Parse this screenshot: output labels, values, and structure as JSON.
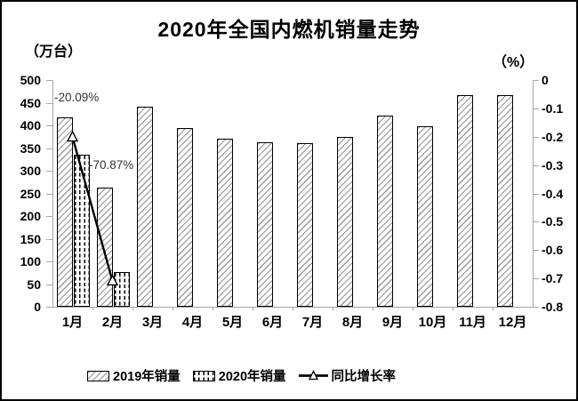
{
  "chart_data": {
    "type": "bar",
    "subtype": "clustered-bar-with-line-combo",
    "title": "2020年全国内燃机销量走势",
    "categories": [
      "1月",
      "2月",
      "3月",
      "4月",
      "5月",
      "6月",
      "7月",
      "8月",
      "9月",
      "10月",
      "11月",
      "12月"
    ],
    "series": [
      {
        "name": "2019年销量",
        "type": "bar",
        "axis": "left",
        "style": "diagonal-hatch",
        "values": [
          418,
          262,
          441,
          394,
          370,
          363,
          361,
          374,
          422,
          398,
          466,
          467
        ]
      },
      {
        "name": "2020年销量",
        "type": "bar",
        "axis": "left",
        "style": "vertical-dash",
        "values": [
          335,
          77,
          null,
          null,
          null,
          null,
          null,
          null,
          null,
          null,
          null,
          null
        ]
      },
      {
        "name": "同比增长率",
        "type": "line",
        "axis": "right",
        "style": "black-line-white-triangle-markers",
        "values": [
          -0.2009,
          -0.7087,
          null,
          null,
          null,
          null,
          null,
          null,
          null,
          null,
          null,
          null
        ],
        "point_labels": [
          "-20.09%",
          "-70.87%"
        ]
      }
    ],
    "left_axis": {
      "label": "（万台）",
      "min": 0,
      "max": 500,
      "step": 50,
      "ticks": [
        "500",
        "450",
        "400",
        "350",
        "300",
        "250",
        "200",
        "150",
        "100",
        "50",
        "0"
      ]
    },
    "right_axis": {
      "label": "（%）",
      "min": -0.8,
      "max": 0,
      "step": 0.1,
      "ticks": [
        "0",
        "-0.1",
        "-0.2",
        "-0.3",
        "-0.4",
        "-0.5",
        "-0.6",
        "-0.7",
        "-0.8"
      ]
    },
    "annotations": [
      {
        "text": "-20.09%"
      },
      {
        "text": "-70.87%"
      }
    ],
    "legend": {
      "position": "bottom",
      "entries": [
        "2019年销量",
        "2020年销量",
        "同比增长率"
      ]
    },
    "grid": false
  },
  "colors": {
    "background": "#ffffff",
    "frame_border": "#000000",
    "axis": "#a6a6a6",
    "bar_border": "#000000",
    "hatch_gray": "#ababab",
    "line": "#000000",
    "text": "#000000",
    "annotation": "#333333"
  }
}
